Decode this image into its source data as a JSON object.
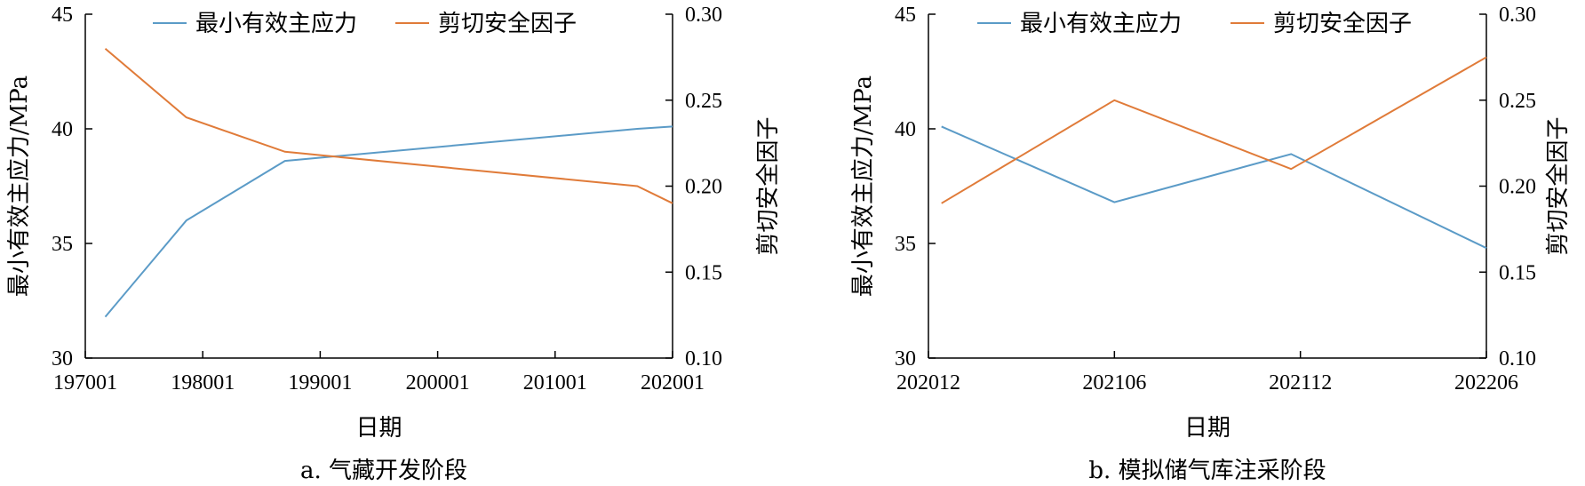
{
  "colors": {
    "stress": "#5b9bc7",
    "shear": "#e07b39"
  },
  "chart_data": [
    {
      "type": "line",
      "caption": "a. 气藏开发阶段",
      "xlabel": "日期",
      "ylabel_left": "最小有效主应力/MPa",
      "ylabel_right": "剪切安全因子",
      "x_ticks": [
        "197001",
        "198001",
        "199001",
        "200001",
        "201001",
        "202001"
      ],
      "x_range": [
        0,
        5
      ],
      "left_ticks": [
        "30",
        "35",
        "40",
        "45"
      ],
      "left_range": [
        30,
        45
      ],
      "right_ticks": [
        "0.10",
        "0.15",
        "0.20",
        "0.25",
        "0.30"
      ],
      "right_range": [
        0.1,
        0.3
      ],
      "legend": [
        "最小有效主应力",
        "剪切安全因子"
      ],
      "series": [
        {
          "name": "最小有效主应力",
          "axis": "left",
          "x": [
            0.17,
            0.86,
            1.7,
            4.7,
            5.0
          ],
          "values": [
            31.8,
            36.0,
            38.6,
            40.0,
            40.1
          ]
        },
        {
          "name": "剪切安全因子",
          "axis": "right",
          "x": [
            0.17,
            0.86,
            1.7,
            4.7,
            5.0
          ],
          "values": [
            0.28,
            0.24,
            0.22,
            0.2,
            0.19
          ]
        }
      ]
    },
    {
      "type": "line",
      "caption": "b. 模拟储气库注采阶段",
      "xlabel": "日期",
      "ylabel_left": "最小有效主应力/MPa",
      "ylabel_right": "剪切安全因子",
      "x_ticks": [
        "202012",
        "202106",
        "202112",
        "202206"
      ],
      "x_range": [
        0,
        3
      ],
      "left_ticks": [
        "30",
        "35",
        "40",
        "45"
      ],
      "left_range": [
        30,
        45
      ],
      "right_ticks": [
        "0.10",
        "0.15",
        "0.20",
        "0.25",
        "0.30"
      ],
      "right_range": [
        0.1,
        0.3
      ],
      "legend": [
        "最小有效主应力",
        "剪切安全因子"
      ],
      "series": [
        {
          "name": "最小有效主应力",
          "axis": "left",
          "x": [
            0.07,
            1.0,
            1.95,
            3.0
          ],
          "values": [
            40.1,
            36.8,
            38.9,
            34.8
          ]
        },
        {
          "name": "剪切安全因子",
          "axis": "right",
          "x": [
            0.07,
            1.0,
            1.95,
            3.0
          ],
          "values": [
            0.19,
            0.25,
            0.21,
            0.275
          ]
        }
      ]
    }
  ]
}
